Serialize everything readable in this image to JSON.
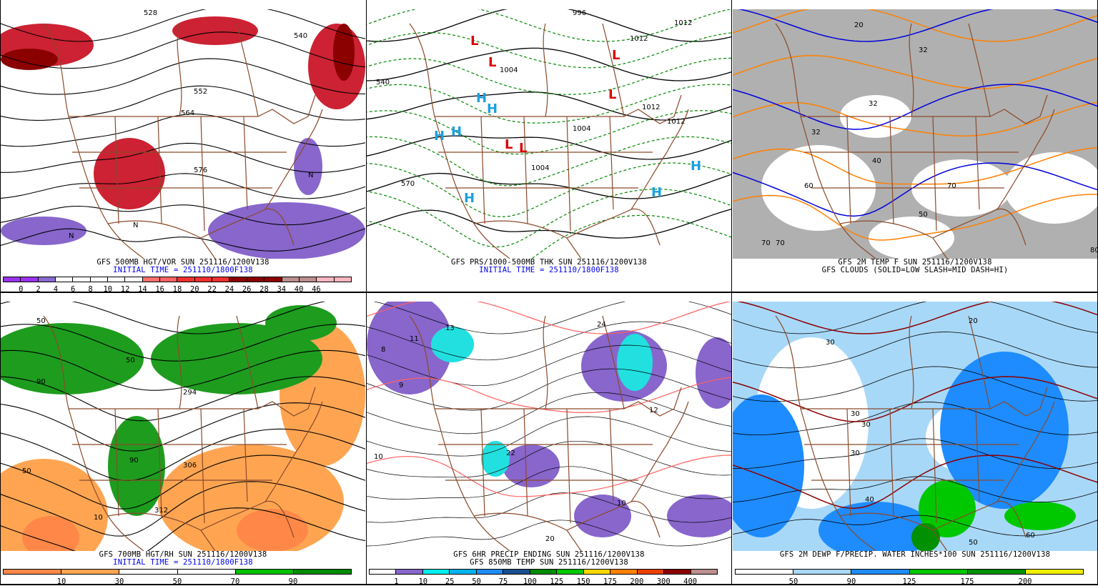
{
  "panels": [
    {
      "id": "hgt500-vor",
      "caption1": "GFS 500MB HGT/VOR SUN 251116/1200V138",
      "caption2": "INITIAL TIME = 251110/1800F138",
      "colorbar": {
        "colors": [
          "#9a33ee",
          "#9a33ee",
          "#8a6ad2",
          "#ffffff",
          "#ffffff",
          "#ffffff",
          "#ffffff",
          "#ffffff",
          "#ff7070",
          "#ff6464",
          "#ee3030",
          "#ee3030",
          "#ee3030",
          "#8b0000",
          "#8b0000",
          "#8b0000",
          "#bc8f8f",
          "#bc8f8f",
          "#ffb6c1",
          "#ffb6c1"
        ],
        "labels": [
          "0",
          "2",
          "4",
          "6",
          "8",
          "10",
          "12",
          "14",
          "16",
          "18",
          "20",
          "22",
          "24",
          "26",
          "28",
          "34",
          "40",
          "46"
        ]
      },
      "map_labels": [
        "528",
        "540",
        "552",
        "564",
        "576",
        "N",
        "N",
        "N"
      ]
    },
    {
      "id": "prs-thk",
      "caption1": "GFS PRS/1000-500MB THK SUN 251116/1200V138",
      "caption2": "INITIAL TIME = 251110/1800F138",
      "map_labels": [
        "L",
        "L",
        "L",
        "L",
        "L",
        "L",
        "H",
        "H",
        "H",
        "H",
        "H",
        "H",
        "H",
        "996",
        "1004",
        "1012",
        "1012",
        "1004",
        "1004",
        "1012",
        "540",
        "570",
        "1012"
      ]
    },
    {
      "id": "temp2m-clouds",
      "caption1": "GFS 2M TEMP F SUN 251116/1200V138",
      "caption2": "GFS CLOUDS (SOLID=LOW SLASH=MID DASH=HI)",
      "map_labels": [
        "20",
        "32",
        "32",
        "40",
        "32",
        "50",
        "60",
        "70",
        "70",
        "70",
        "80"
      ]
    },
    {
      "id": "hgt700-rh",
      "caption1": "GFS 700MB HGT/RH SUN 251116/1200V138",
      "caption2": "INITIAL TIME = 251110/1800F138",
      "colorbar": {
        "colors": [
          "#ff8848",
          "#ffa552",
          "#ffffff",
          "#ffffff",
          "#00c000",
          "#008c00"
        ],
        "labels": [
          "10",
          "30",
          "50",
          "70",
          "90"
        ]
      },
      "map_labels": [
        "50",
        "90",
        "50",
        "294",
        "306",
        "312",
        "50",
        "10",
        "90"
      ]
    },
    {
      "id": "precip6hr-temp850",
      "caption1": "GFS 6HR PRECIP ENDING SUN 251116/1200V138",
      "caption2": "GFS 850MB TEMP SUN 251116/1200V138",
      "colorbar": {
        "colors": [
          "#ffffff",
          "#8866cc",
          "#00eeee",
          "#00b4f0",
          "#1e8cff",
          "#1a4f8f",
          "#008c00",
          "#00c800",
          "#ffd700",
          "#ff8000",
          "#ee4000",
          "#8b0000",
          "#bc8f8f"
        ],
        "labels": [
          "1",
          "10",
          "25",
          "50",
          "75",
          "100",
          "125",
          "150",
          "175",
          "200",
          "300",
          "400"
        ]
      },
      "map_labels": [
        "8",
        "11",
        "13",
        "9",
        "24",
        "22",
        "12",
        "10",
        "10",
        "20"
      ]
    },
    {
      "id": "dewp2m-pwat",
      "caption1": "GFS 2M DEWP F/PRECIP. WATER INCHES*100 SUN 251116/1200V138",
      "caption2": "",
      "colorbar": {
        "colors": [
          "#ffffff",
          "#a8d8f8",
          "#1e8cff",
          "#00c800",
          "#009000",
          "#eeee00"
        ],
        "labels": [
          "50",
          "90",
          "125",
          "175",
          "200"
        ]
      },
      "map_labels": [
        "30",
        "30",
        "20",
        "30",
        "30",
        "40",
        "50",
        "60"
      ]
    }
  ]
}
